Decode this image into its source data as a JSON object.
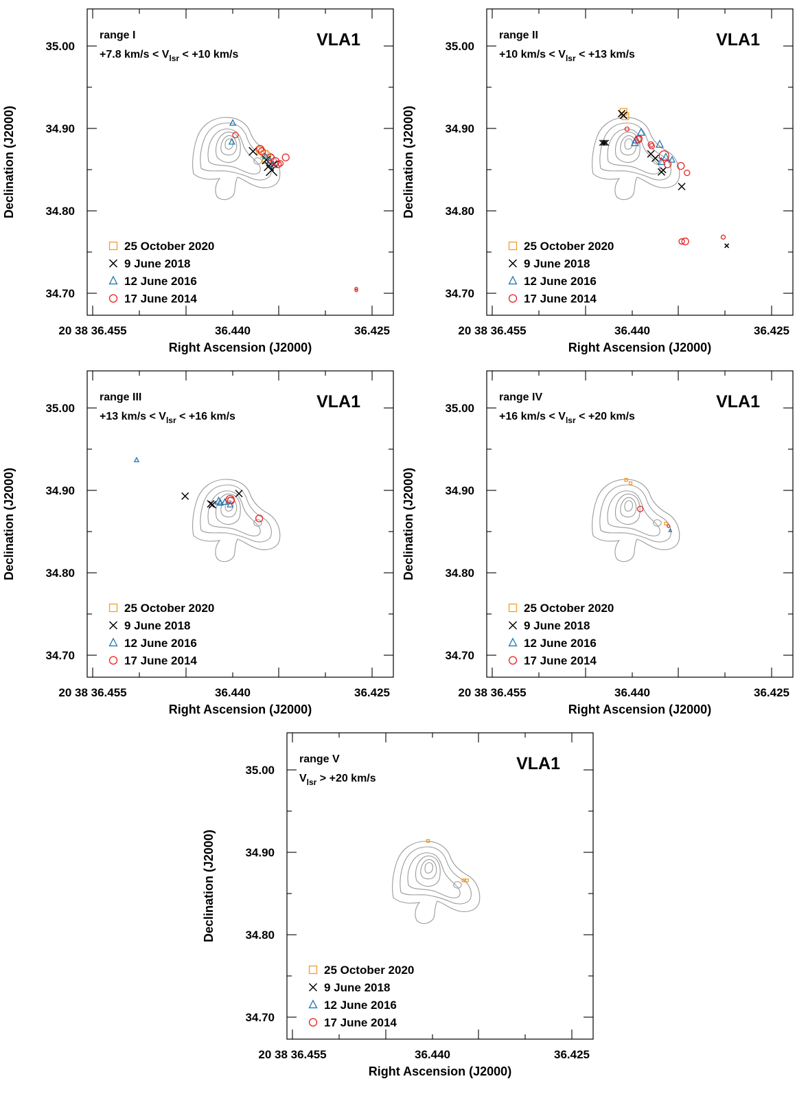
{
  "figure": {
    "panel_count": 5
  },
  "chart_data": [
    {
      "type": "scatter",
      "range_label": "range I",
      "velocity_label": {
        "pre": "+7.8 km/s < V",
        "sub": "lsr",
        "post": " < +10 km/s"
      },
      "source_label": "VLA1",
      "xlabel": "Right Ascension (J2000)",
      "ylabel": "Declination (J2000)",
      "x_tick_labels": [
        "20 38 36.455",
        "36.440",
        "36.425"
      ],
      "y_tick_labels": [
        "35.00",
        "34.90",
        "34.80",
        "34.70"
      ],
      "xlim": [
        36.4558,
        36.4211
      ],
      "ylim": [
        34.686,
        35.043
      ],
      "legend": [
        {
          "label": "25 October 2020",
          "marker": "square",
          "greyed": false
        },
        {
          "label": "9 June 2018",
          "marker": "cross",
          "greyed": true
        },
        {
          "label": "12 June 2016",
          "marker": "triangle",
          "greyed": false
        },
        {
          "label": "17 June 2014",
          "marker": "circle",
          "greyed": false
        }
      ],
      "series": [
        {
          "epoch": "2020",
          "marker": "square",
          "color": "#f39c2a",
          "points": [
            [
              36.4362,
              34.878,
              5
            ],
            [
              36.4357,
              34.874,
              5
            ],
            [
              36.4353,
              34.87,
              4
            ],
            [
              36.4356,
              34.866,
              4
            ]
          ]
        },
        {
          "epoch": "2018",
          "marker": "cross",
          "color": "#000000",
          "points": [
            [
              36.437,
              34.877,
              6
            ],
            [
              36.4355,
              34.867,
              6
            ],
            [
              36.4352,
              34.86,
              7
            ],
            [
              36.4349,
              34.855,
              8
            ],
            [
              36.4346,
              34.862,
              5
            ]
          ]
        },
        {
          "epoch": "2016",
          "marker": "triangle",
          "color": "#1f78b4",
          "points": [
            [
              36.4393,
              34.91,
              4
            ],
            [
              36.4394,
              34.888,
              4
            ],
            [
              36.4356,
              34.871,
              4
            ],
            [
              36.4351,
              34.866,
              4
            ],
            [
              36.4347,
              34.861,
              4
            ]
          ]
        },
        {
          "epoch": "2014",
          "marker": "circle",
          "color": "#e8231f",
          "points": [
            [
              36.439,
              34.896,
              4
            ],
            [
              36.4362,
              34.88,
              5
            ],
            [
              36.436,
              34.877,
              5
            ],
            [
              36.435,
              34.87,
              5
            ],
            [
              36.4345,
              34.865,
              6
            ],
            [
              36.4342,
              34.862,
              5
            ],
            [
              36.4339,
              34.863,
              4
            ],
            [
              36.4333,
              34.87,
              5
            ],
            [
              36.4253,
              34.717,
              2
            ],
            [
              36.4253,
              34.715,
              2
            ]
          ]
        }
      ]
    },
    {
      "type": "scatter",
      "range_label": "range II",
      "velocity_label": {
        "pre": "+10 km/s < V",
        "sub": "lsr",
        "post": " < +13 km/s"
      },
      "source_label": "VLA1",
      "xlabel": "Right Ascension (J2000)",
      "ylabel": "Declination (J2000)",
      "x_tick_labels": [
        "20 38 36.455",
        "36.440",
        "36.425"
      ],
      "y_tick_labels": [
        "35.00",
        "34.90",
        "34.80",
        "34.70"
      ],
      "xlim": [
        36.4558,
        36.4211
      ],
      "ylim": [
        34.686,
        35.043
      ],
      "legend": [
        {
          "label": "25 October 2020",
          "marker": "square",
          "greyed": false
        },
        {
          "label": "9 June 2018",
          "marker": "cross",
          "greyed": false
        },
        {
          "label": "12 June 2016",
          "marker": "triangle",
          "greyed": true
        },
        {
          "label": "17 June 2014",
          "marker": "circle",
          "greyed": false
        }
      ],
      "series": [
        {
          "epoch": "2020",
          "marker": "square",
          "color": "#f39c2a",
          "points": [
            [
              36.4403,
              34.923,
              5
            ],
            [
              36.4401,
              34.918,
              5
            ]
          ]
        },
        {
          "epoch": "2018",
          "marker": "cross",
          "color": "#000000",
          "points": [
            [
              36.4427,
              34.887,
              4
            ],
            [
              36.4425,
              34.887,
              4
            ],
            [
              36.4423,
              34.887,
              4
            ],
            [
              36.4405,
              34.921,
              5
            ],
            [
              36.4403,
              34.919,
              5
            ],
            [
              36.4372,
              34.874,
              5
            ],
            [
              36.4367,
              34.869,
              5
            ],
            [
              36.436,
              34.853,
              5
            ],
            [
              36.4358,
              34.855,
              4
            ],
            [
              36.4337,
              34.836,
              5
            ],
            [
              36.4286,
              34.767,
              3
            ]
          ]
        },
        {
          "epoch": "2016",
          "marker": "triangle",
          "color": "#1f78b4",
          "points": [
            [
              36.439,
              34.887,
              5
            ],
            [
              36.4389,
              34.89,
              5
            ],
            [
              36.4383,
              34.899,
              5
            ],
            [
              36.4362,
              34.885,
              5
            ],
            [
              36.436,
              34.865,
              5
            ],
            [
              36.4355,
              34.87,
              5
            ],
            [
              36.4348,
              34.867,
              4
            ]
          ]
        },
        {
          "epoch": "2014",
          "marker": "circle",
          "color": "#e8231f",
          "points": [
            [
              36.4399,
              34.903,
              3
            ],
            [
              36.4386,
              34.891,
              5
            ],
            [
              36.4385,
              34.892,
              4
            ],
            [
              36.4372,
              34.885,
              4
            ],
            [
              36.4371,
              34.883,
              4
            ],
            [
              36.4357,
              34.872,
              7
            ],
            [
              36.4353,
              34.862,
              5
            ],
            [
              36.4338,
              34.86,
              5
            ],
            [
              36.4331,
              34.852,
              4
            ],
            [
              36.4337,
              34.772,
              4
            ],
            [
              36.4333,
              34.772,
              5
            ],
            [
              36.429,
              34.777,
              3
            ]
          ]
        }
      ]
    },
    {
      "type": "scatter",
      "range_label": "range III",
      "velocity_label": {
        "pre": "+13 km/s < V",
        "sub": "lsr",
        "post": " < +16 km/s"
      },
      "source_label": "VLA1",
      "xlabel": "Right Ascension (J2000)",
      "ylabel": "Declination (J2000)",
      "x_tick_labels": [
        "20 38 36.455",
        "36.440",
        "36.425"
      ],
      "y_tick_labels": [
        "35.00",
        "34.90",
        "34.80",
        "34.70"
      ],
      "xlim": [
        36.4558,
        36.4211
      ],
      "ylim": [
        34.686,
        35.043
      ],
      "legend": [
        {
          "label": "25 October 2020",
          "marker": "square",
          "greyed": false
        },
        {
          "label": "9 June 2018",
          "marker": "cross",
          "greyed": false
        },
        {
          "label": "12 June 2016",
          "marker": "triangle",
          "greyed": false
        },
        {
          "label": "17 June 2014",
          "marker": "circle",
          "greyed": true
        }
      ],
      "series": [
        {
          "epoch": "2020",
          "marker": "square",
          "color": "#f39c2a",
          "points": []
        },
        {
          "epoch": "2018",
          "marker": "cross",
          "color": "#000000",
          "points": [
            [
              36.4447,
              34.897,
              5
            ],
            [
              36.4418,
              34.888,
              5
            ],
            [
              36.4416,
              34.887,
              5
            ],
            [
              36.4386,
              34.9,
              5
            ]
          ]
        },
        {
          "epoch": "2016",
          "marker": "triangle",
          "color": "#1f78b4",
          "points": [
            [
              36.4502,
              34.939,
              3
            ],
            [
              36.4409,
              34.891,
              5
            ],
            [
              36.4407,
              34.889,
              4
            ],
            [
              36.4402,
              34.89,
              4
            ],
            [
              36.4396,
              34.887,
              4
            ]
          ]
        },
        {
          "epoch": "2014",
          "marker": "circle",
          "color": "#e8231f",
          "points": [
            [
              36.4396,
              34.893,
              6
            ],
            [
              36.4395,
              34.892,
              5
            ],
            [
              36.4363,
              34.871,
              5
            ]
          ]
        }
      ]
    },
    {
      "type": "scatter",
      "range_label": "range IV",
      "velocity_label": {
        "pre": "+16 km/s < V",
        "sub": "lsr",
        "post": " < +20 km/s"
      },
      "source_label": "VLA1",
      "xlabel": "Right Ascension (J2000)",
      "ylabel": "Declination (J2000)",
      "x_tick_labels": [
        "20 38 36.455",
        "36.440",
        "36.425"
      ],
      "y_tick_labels": [
        "35.00",
        "34.90",
        "34.80",
        "34.70"
      ],
      "xlim": [
        36.4558,
        36.4211
      ],
      "ylim": [
        34.686,
        35.043
      ],
      "legend": [
        {
          "label": "25 October 2020",
          "marker": "square",
          "greyed": false
        },
        {
          "label": "9 June 2018",
          "marker": "cross",
          "greyed": false
        },
        {
          "label": "12 June 2016",
          "marker": "triangle",
          "greyed": false
        },
        {
          "label": "17 June 2014",
          "marker": "circle",
          "greyed": true
        }
      ],
      "series": [
        {
          "epoch": "2020",
          "marker": "square",
          "color": "#f39c2a",
          "points": [
            [
              36.44,
              34.916,
              2
            ],
            [
              36.4395,
              34.912,
              2
            ],
            [
              36.4355,
              34.865,
              2
            ]
          ]
        },
        {
          "epoch": "2018",
          "marker": "cross",
          "color": "#000000",
          "points": []
        },
        {
          "epoch": "2016",
          "marker": "triangle",
          "color": "#1f78b4",
          "points": [
            [
              36.435,
              34.857,
              2
            ]
          ]
        },
        {
          "epoch": "2014",
          "marker": "circle",
          "color": "#e8231f",
          "points": [
            [
              36.4384,
              34.882,
              4
            ],
            [
              36.4352,
              34.862,
              2
            ]
          ]
        }
      ]
    },
    {
      "type": "scatter",
      "range_label": "range V",
      "velocity_label": {
        "pre": "V",
        "sub": "lsr",
        "post": " > +20 km/s"
      },
      "source_label": "VLA1",
      "xlabel": "Right Ascension (J2000)",
      "ylabel": "Declination (J2000)",
      "x_tick_labels": [
        "20 38 36.455",
        "36.440",
        "36.425"
      ],
      "y_tick_labels": [
        "35.00",
        "34.90",
        "34.80",
        "34.70"
      ],
      "xlim": [
        36.4558,
        36.4211
      ],
      "ylim": [
        34.686,
        35.043
      ],
      "legend": [
        {
          "label": "25 October 2020",
          "marker": "square",
          "greyed": true
        },
        {
          "label": "9 June 2018",
          "marker": "cross",
          "greyed": false
        },
        {
          "label": "12 June 2016",
          "marker": "triangle",
          "greyed": false
        },
        {
          "label": "17 June 2014",
          "marker": "circle",
          "greyed": false
        }
      ],
      "series": [
        {
          "epoch": "2020",
          "marker": "square",
          "color": "#f39c2a",
          "points": [
            [
              36.4398,
              34.917,
              2
            ],
            [
              36.4358,
              34.871,
              2
            ],
            [
              36.4354,
              34.871,
              2
            ]
          ]
        },
        {
          "epoch": "2018",
          "marker": "cross",
          "color": "#000000",
          "points": []
        },
        {
          "epoch": "2016",
          "marker": "triangle",
          "color": "#1f78b4",
          "points": []
        },
        {
          "epoch": "2014",
          "marker": "circle",
          "color": "#e8231f",
          "points": []
        }
      ]
    }
  ],
  "colors": {
    "greyed_text": "#a0a0a0",
    "contour": "#9a9a9a"
  }
}
